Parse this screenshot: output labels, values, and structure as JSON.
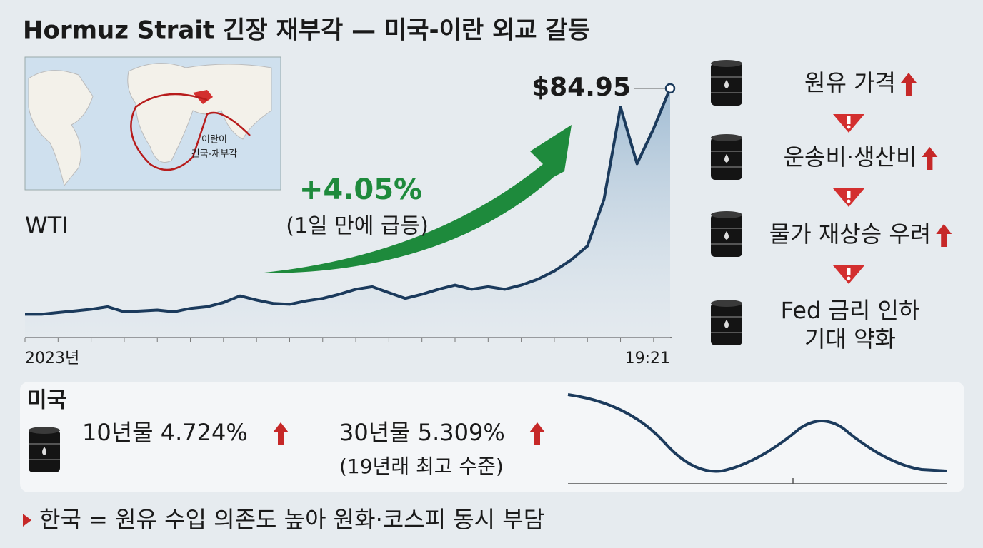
{
  "title": "Hormuz Strait 긴장 재부각 — 미국-이란 외교 갈등",
  "map": {
    "labels": [
      "이란이",
      "긴국-재부각"
    ]
  },
  "chart_data": {
    "type": "line",
    "label": "WTI",
    "color": "#1b3a5c",
    "categories": [
      "2023년",
      null,
      null,
      null,
      null,
      null,
      null,
      null,
      null,
      null,
      null,
      null,
      null,
      null,
      null,
      null,
      null,
      null,
      null,
      null,
      null,
      null,
      null,
      null,
      null,
      null,
      null,
      null,
      null,
      null,
      null,
      null,
      null,
      null,
      null,
      null,
      null,
      null,
      null,
      "19:21"
    ],
    "values": [
      57.8,
      57.8,
      58.0,
      58.2,
      58.4,
      58.7,
      58.1,
      58.2,
      58.3,
      58.1,
      58.5,
      58.7,
      59.2,
      60.0,
      59.5,
      59.1,
      59.0,
      59.4,
      59.7,
      60.2,
      60.8,
      61.1,
      60.4,
      59.7,
      60.2,
      60.8,
      61.3,
      60.8,
      61.1,
      60.8,
      61.3,
      62.0,
      63.0,
      64.3,
      66.0,
      71.6,
      82.7,
      75.9,
      80.1,
      84.95
    ],
    "value_labels": [
      null,
      null,
      null,
      null,
      null,
      null,
      null,
      null,
      null,
      null,
      null,
      null,
      null,
      null,
      null,
      null,
      null,
      null,
      null,
      null,
      null,
      null,
      null,
      null,
      null,
      null,
      null,
      null,
      null,
      null,
      null,
      null,
      null,
      null,
      null,
      null,
      null,
      null,
      null,
      "$84.95"
    ],
    "ylim": [
      55,
      87
    ],
    "change": "+4.05%",
    "change_note": "(1일 만에 급등)"
  },
  "chain": [
    [
      "원유 가격"
    ],
    [
      "운송비·생산비"
    ],
    [
      "물가 재상승 우려"
    ],
    [
      "Fed 금리 인하",
      "기대 약화"
    ]
  ],
  "us": {
    "label": "미국",
    "items": [
      {
        "text": "10년물 4.724%"
      },
      {
        "text": "30년물 5.309%",
        "note": "(19년래 최고 수준)"
      }
    ]
  },
  "footer": "한국 = 원유 수입 의존도 높아 원화·코스피 동시 부담"
}
